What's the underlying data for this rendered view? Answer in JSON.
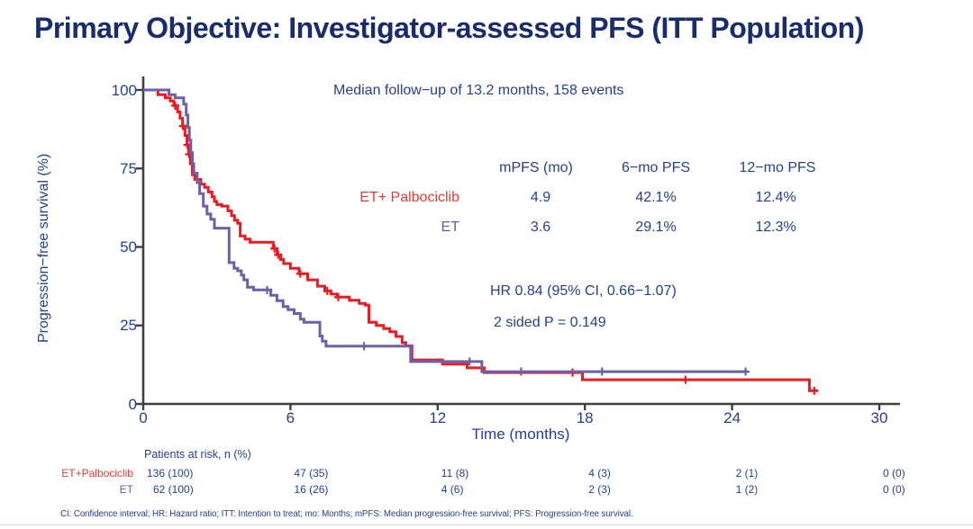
{
  "title": "Primary Objective: Investigator-assessed PFS (ITT Population)",
  "annotations": {
    "median_followup": "Median follow−up of 13.2 months, 158 events",
    "hazard_ratio": "HR 0.84 (95% CI, 0.66−1.07)",
    "p_value": "2 sided P = 0.149"
  },
  "stats_table": {
    "headers": [
      "mPFS (mo)",
      "6−mo PFS",
      "12−mo PFS"
    ],
    "rows": [
      {
        "label": "ET+ Palbociclib",
        "color": "#e23c38",
        "values": [
          "4.9",
          "42.1%",
          "12.4%"
        ]
      },
      {
        "label": "ET",
        "color": "#6a5aa5",
        "values": [
          "3.6",
          "29.1%",
          "12.3%"
        ]
      }
    ]
  },
  "chart_data": {
    "type": "line",
    "subtype": "kaplan-meier-step",
    "xlabel": "Time (months)",
    "ylabel": "Progression−free survival (%)",
    "x_ticks": [
      0,
      6,
      12,
      18,
      24,
      30
    ],
    "y_ticks": [
      0,
      25,
      50,
      75,
      100
    ],
    "xlim": [
      0,
      31
    ],
    "ylim": [
      0,
      100
    ],
    "series": [
      {
        "name": "ET+ Palbociclib",
        "color": "#e91c23",
        "end": 27.5,
        "steps": [
          [
            0,
            100
          ],
          [
            0.6,
            98.5
          ],
          [
            0.9,
            97.5
          ],
          [
            1.1,
            96.5
          ],
          [
            1.25,
            95
          ],
          [
            1.4,
            93
          ],
          [
            1.5,
            91
          ],
          [
            1.6,
            88.5
          ],
          [
            1.7,
            85.5
          ],
          [
            1.78,
            82.5
          ],
          [
            1.85,
            79.5
          ],
          [
            1.92,
            76.5
          ],
          [
            2.0,
            73
          ],
          [
            2.1,
            71.5
          ],
          [
            2.35,
            70
          ],
          [
            2.5,
            69
          ],
          [
            2.65,
            67.5
          ],
          [
            2.8,
            66
          ],
          [
            2.9,
            64.5
          ],
          [
            3.0,
            63.5
          ],
          [
            3.2,
            63
          ],
          [
            3.45,
            61.5
          ],
          [
            3.6,
            60
          ],
          [
            3.72,
            58.5
          ],
          [
            3.85,
            57.5
          ],
          [
            3.95,
            53.5
          ],
          [
            4.15,
            52.5
          ],
          [
            4.35,
            51.5
          ],
          [
            5.3,
            49.5
          ],
          [
            5.45,
            47.5
          ],
          [
            5.6,
            46
          ],
          [
            5.72,
            44.7
          ],
          [
            6.0,
            43.2
          ],
          [
            6.35,
            41.5
          ],
          [
            6.7,
            39.5
          ],
          [
            7.1,
            37.5
          ],
          [
            7.4,
            36
          ],
          [
            7.65,
            35
          ],
          [
            7.9,
            34
          ],
          [
            8.4,
            33
          ],
          [
            8.8,
            32
          ],
          [
            9.05,
            31.5
          ],
          [
            9.2,
            26
          ],
          [
            9.5,
            25
          ],
          [
            9.8,
            24
          ],
          [
            10.05,
            23
          ],
          [
            10.3,
            21.5
          ],
          [
            10.55,
            19.5
          ],
          [
            10.7,
            18.5
          ],
          [
            10.95,
            14
          ],
          [
            12.2,
            12.7
          ],
          [
            13.2,
            11.5
          ],
          [
            13.9,
            10
          ],
          [
            17.9,
            7.7
          ],
          [
            27.15,
            4.2
          ]
        ],
        "censors": [
          [
            1.3,
            95
          ],
          [
            1.62,
            88.5
          ],
          [
            1.8,
            82.5
          ],
          [
            1.87,
            79.5
          ],
          [
            5.35,
            49.5
          ],
          [
            5.5,
            47.5
          ],
          [
            6.4,
            41.5
          ],
          [
            7.5,
            36
          ],
          [
            7.95,
            34
          ],
          [
            17.5,
            10
          ],
          [
            22.1,
            7.7
          ],
          [
            27.35,
            4.2
          ]
        ]
      },
      {
        "name": "ET",
        "color": "#6f5fa6",
        "end": 24.65,
        "steps": [
          [
            0,
            100
          ],
          [
            1.05,
            98.5
          ],
          [
            1.3,
            97.5
          ],
          [
            1.65,
            95.5
          ],
          [
            1.75,
            92
          ],
          [
            1.82,
            88
          ],
          [
            1.88,
            84
          ],
          [
            1.94,
            80
          ],
          [
            2.0,
            76.5
          ],
          [
            2.06,
            73.5
          ],
          [
            2.2,
            70.5
          ],
          [
            2.3,
            67
          ],
          [
            2.45,
            63
          ],
          [
            2.6,
            60.5
          ],
          [
            2.75,
            58.8
          ],
          [
            2.9,
            56
          ],
          [
            3.5,
            45
          ],
          [
            3.7,
            43.2
          ],
          [
            3.85,
            42.4
          ],
          [
            4.0,
            41
          ],
          [
            4.1,
            39.5
          ],
          [
            4.25,
            37.2
          ],
          [
            4.5,
            36.3
          ],
          [
            5.2,
            34.6
          ],
          [
            5.45,
            32.9
          ],
          [
            5.7,
            31
          ],
          [
            5.9,
            30
          ],
          [
            6.15,
            28.8
          ],
          [
            6.4,
            27
          ],
          [
            6.55,
            26
          ],
          [
            7.2,
            21.6
          ],
          [
            7.3,
            20
          ],
          [
            7.45,
            18.4
          ],
          [
            10.9,
            13.5
          ],
          [
            13.8,
            10.3
          ]
        ],
        "censors": [
          [
            5.05,
            36.3
          ],
          [
            9.0,
            18.4
          ],
          [
            13.3,
            13.5
          ],
          [
            15.4,
            10.3
          ],
          [
            18.7,
            10.3
          ],
          [
            24.55,
            10.3
          ]
        ]
      }
    ]
  },
  "risk_table": {
    "title": "Patients at risk, n (%)",
    "rows": [
      {
        "label": "ET+Palbociclib",
        "color": "#e23c38",
        "values": [
          "136 (100)",
          "47 (35)",
          "11 (8)",
          "4 (3)",
          "2 (1)",
          "0 (0)"
        ]
      },
      {
        "label": "ET",
        "color": "#6a5aa5",
        "values": [
          "62 (100)",
          "16 (26)",
          "4 (6)",
          "2 (3)",
          "1 (2)",
          "0 (0)"
        ]
      }
    ]
  },
  "footer": "CI: Confidence interval; HR: Hazard ratio; ITT: Intention to treat; mo: Months; mPFS: Median progression-free survival; PFS: Progression-free survival.",
  "colors": {
    "title_text": "#1a2c6b",
    "body_text": "#27408f",
    "axis": "#404040",
    "palbociclib_red": "#e91c23",
    "et_purple": "#6f5fa6"
  }
}
